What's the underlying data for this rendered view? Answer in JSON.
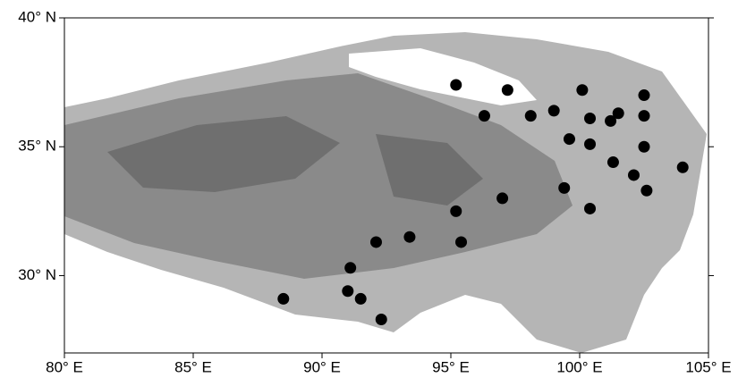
{
  "chart_data": {
    "type": "scatter",
    "x": [
      95.2,
      97.2,
      100.1,
      102.5,
      96.3,
      98.1,
      99.0,
      100.4,
      101.5,
      101.2,
      102.5,
      99.6,
      100.4,
      102.5,
      101.3,
      102.1,
      104.0,
      102.6,
      99.4,
      97.0,
      100.4,
      95.2,
      93.4,
      95.4,
      92.1,
      91.1,
      91.0,
      91.5,
      88.5,
      92.3
    ],
    "values": [
      37.4,
      37.2,
      37.2,
      37.0,
      36.2,
      36.2,
      36.4,
      36.1,
      36.3,
      36.0,
      36.2,
      35.3,
      35.1,
      35.0,
      34.4,
      33.9,
      34.2,
      33.3,
      33.4,
      33.0,
      32.6,
      32.5,
      31.5,
      31.3,
      31.3,
      30.3,
      29.4,
      29.1,
      29.1,
      28.3
    ],
    "color": "#000000",
    "xlim": [
      80,
      105
    ],
    "ylim": [
      27,
      40
    ],
    "xticks": [
      {
        "value": 80,
        "label": "80° E"
      },
      {
        "value": 85,
        "label": "85° E"
      },
      {
        "value": 90,
        "label": "90° E"
      },
      {
        "value": 95,
        "label": "95° E"
      },
      {
        "value": 100,
        "label": "100° E"
      },
      {
        "value": 105,
        "label": "105° E"
      }
    ],
    "yticks": [
      {
        "value": 30,
        "label": "30° N"
      },
      {
        "value": 35,
        "label": "35° N"
      },
      {
        "value": 40,
        "label": "40° N"
      }
    ],
    "grid": false
  }
}
